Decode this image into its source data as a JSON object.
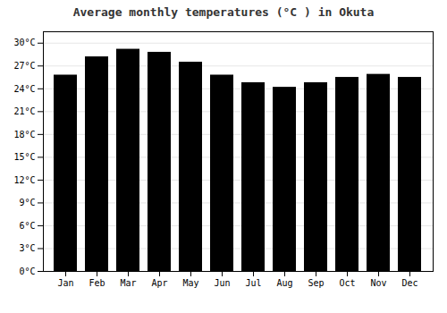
{
  "chart_data": {
    "type": "bar",
    "title": "Average monthly temperatures (°C ) in Okuta",
    "categories": [
      "Jan",
      "Feb",
      "Mar",
      "Apr",
      "May",
      "Jun",
      "Jul",
      "Aug",
      "Sep",
      "Oct",
      "Nov",
      "Dec"
    ],
    "values": [
      25.8,
      28.2,
      29.2,
      28.8,
      27.5,
      25.8,
      24.8,
      24.2,
      24.8,
      25.5,
      25.9,
      25.5
    ],
    "ylim": [
      0,
      31.5
    ],
    "yticks": [
      {
        "value": 0,
        "label": "0°C"
      },
      {
        "value": 3,
        "label": "3°C"
      },
      {
        "value": 6,
        "label": "6°C"
      },
      {
        "value": 9,
        "label": "9°C"
      },
      {
        "value": 12,
        "label": "12°C"
      },
      {
        "value": 15,
        "label": "15°C"
      },
      {
        "value": 18,
        "label": "18°C"
      },
      {
        "value": 21,
        "label": "21°C"
      },
      {
        "value": 24,
        "label": "24°C"
      },
      {
        "value": 27,
        "label": "27°C"
      },
      {
        "value": 30,
        "label": "30°C"
      }
    ],
    "grid": true
  }
}
